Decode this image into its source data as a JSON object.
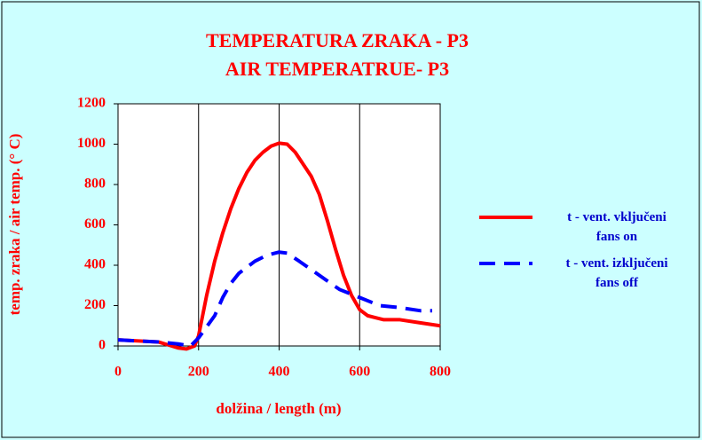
{
  "chart_data": {
    "type": "line",
    "title": "TEMPERATURA ZRAKA - P3",
    "subtitle": "AIR TEMPERATRUE-  P3",
    "x_label": "dolžina / length (m)",
    "y_label": "temp. zraka / air temp. (° C)",
    "xlim": [
      0,
      800
    ],
    "xticks": [
      0,
      200,
      400,
      600,
      800
    ],
    "ylim": [
      0,
      1200
    ],
    "yticks": [
      0,
      200,
      400,
      600,
      800,
      1000,
      1200
    ],
    "grid": "x",
    "series": [
      {
        "name": "t -  vent. vključeni\nfans on",
        "color": "#ff0000",
        "x": [
          0,
          50,
          100,
          125,
          150,
          170,
          190,
          200,
          220,
          240,
          260,
          280,
          300,
          320,
          340,
          360,
          380,
          400,
          420,
          440,
          460,
          480,
          500,
          520,
          540,
          560,
          580,
          600,
          620,
          640,
          660,
          700,
          750,
          800
        ],
        "values": [
          30,
          25,
          20,
          5,
          -10,
          -15,
          0,
          50,
          250,
          420,
          560,
          680,
          780,
          860,
          920,
          960,
          990,
          1005,
          1000,
          960,
          900,
          840,
          750,
          620,
          480,
          350,
          250,
          180,
          150,
          140,
          130,
          130,
          115,
          100
        ]
      },
      {
        "name": "t - vent. izključeni\nfans off",
        "color": "#0000ff",
        "x": [
          0,
          50,
          100,
          150,
          180,
          200,
          240,
          260,
          280,
          300,
          340,
          370,
          400,
          420,
          450,
          500,
          550,
          600,
          650,
          700,
          750,
          780
        ],
        "values": [
          30,
          25,
          20,
          10,
          0,
          40,
          150,
          240,
          310,
          360,
          420,
          450,
          465,
          460,
          420,
          350,
          280,
          240,
          200,
          190,
          175,
          175
        ]
      }
    ]
  }
}
